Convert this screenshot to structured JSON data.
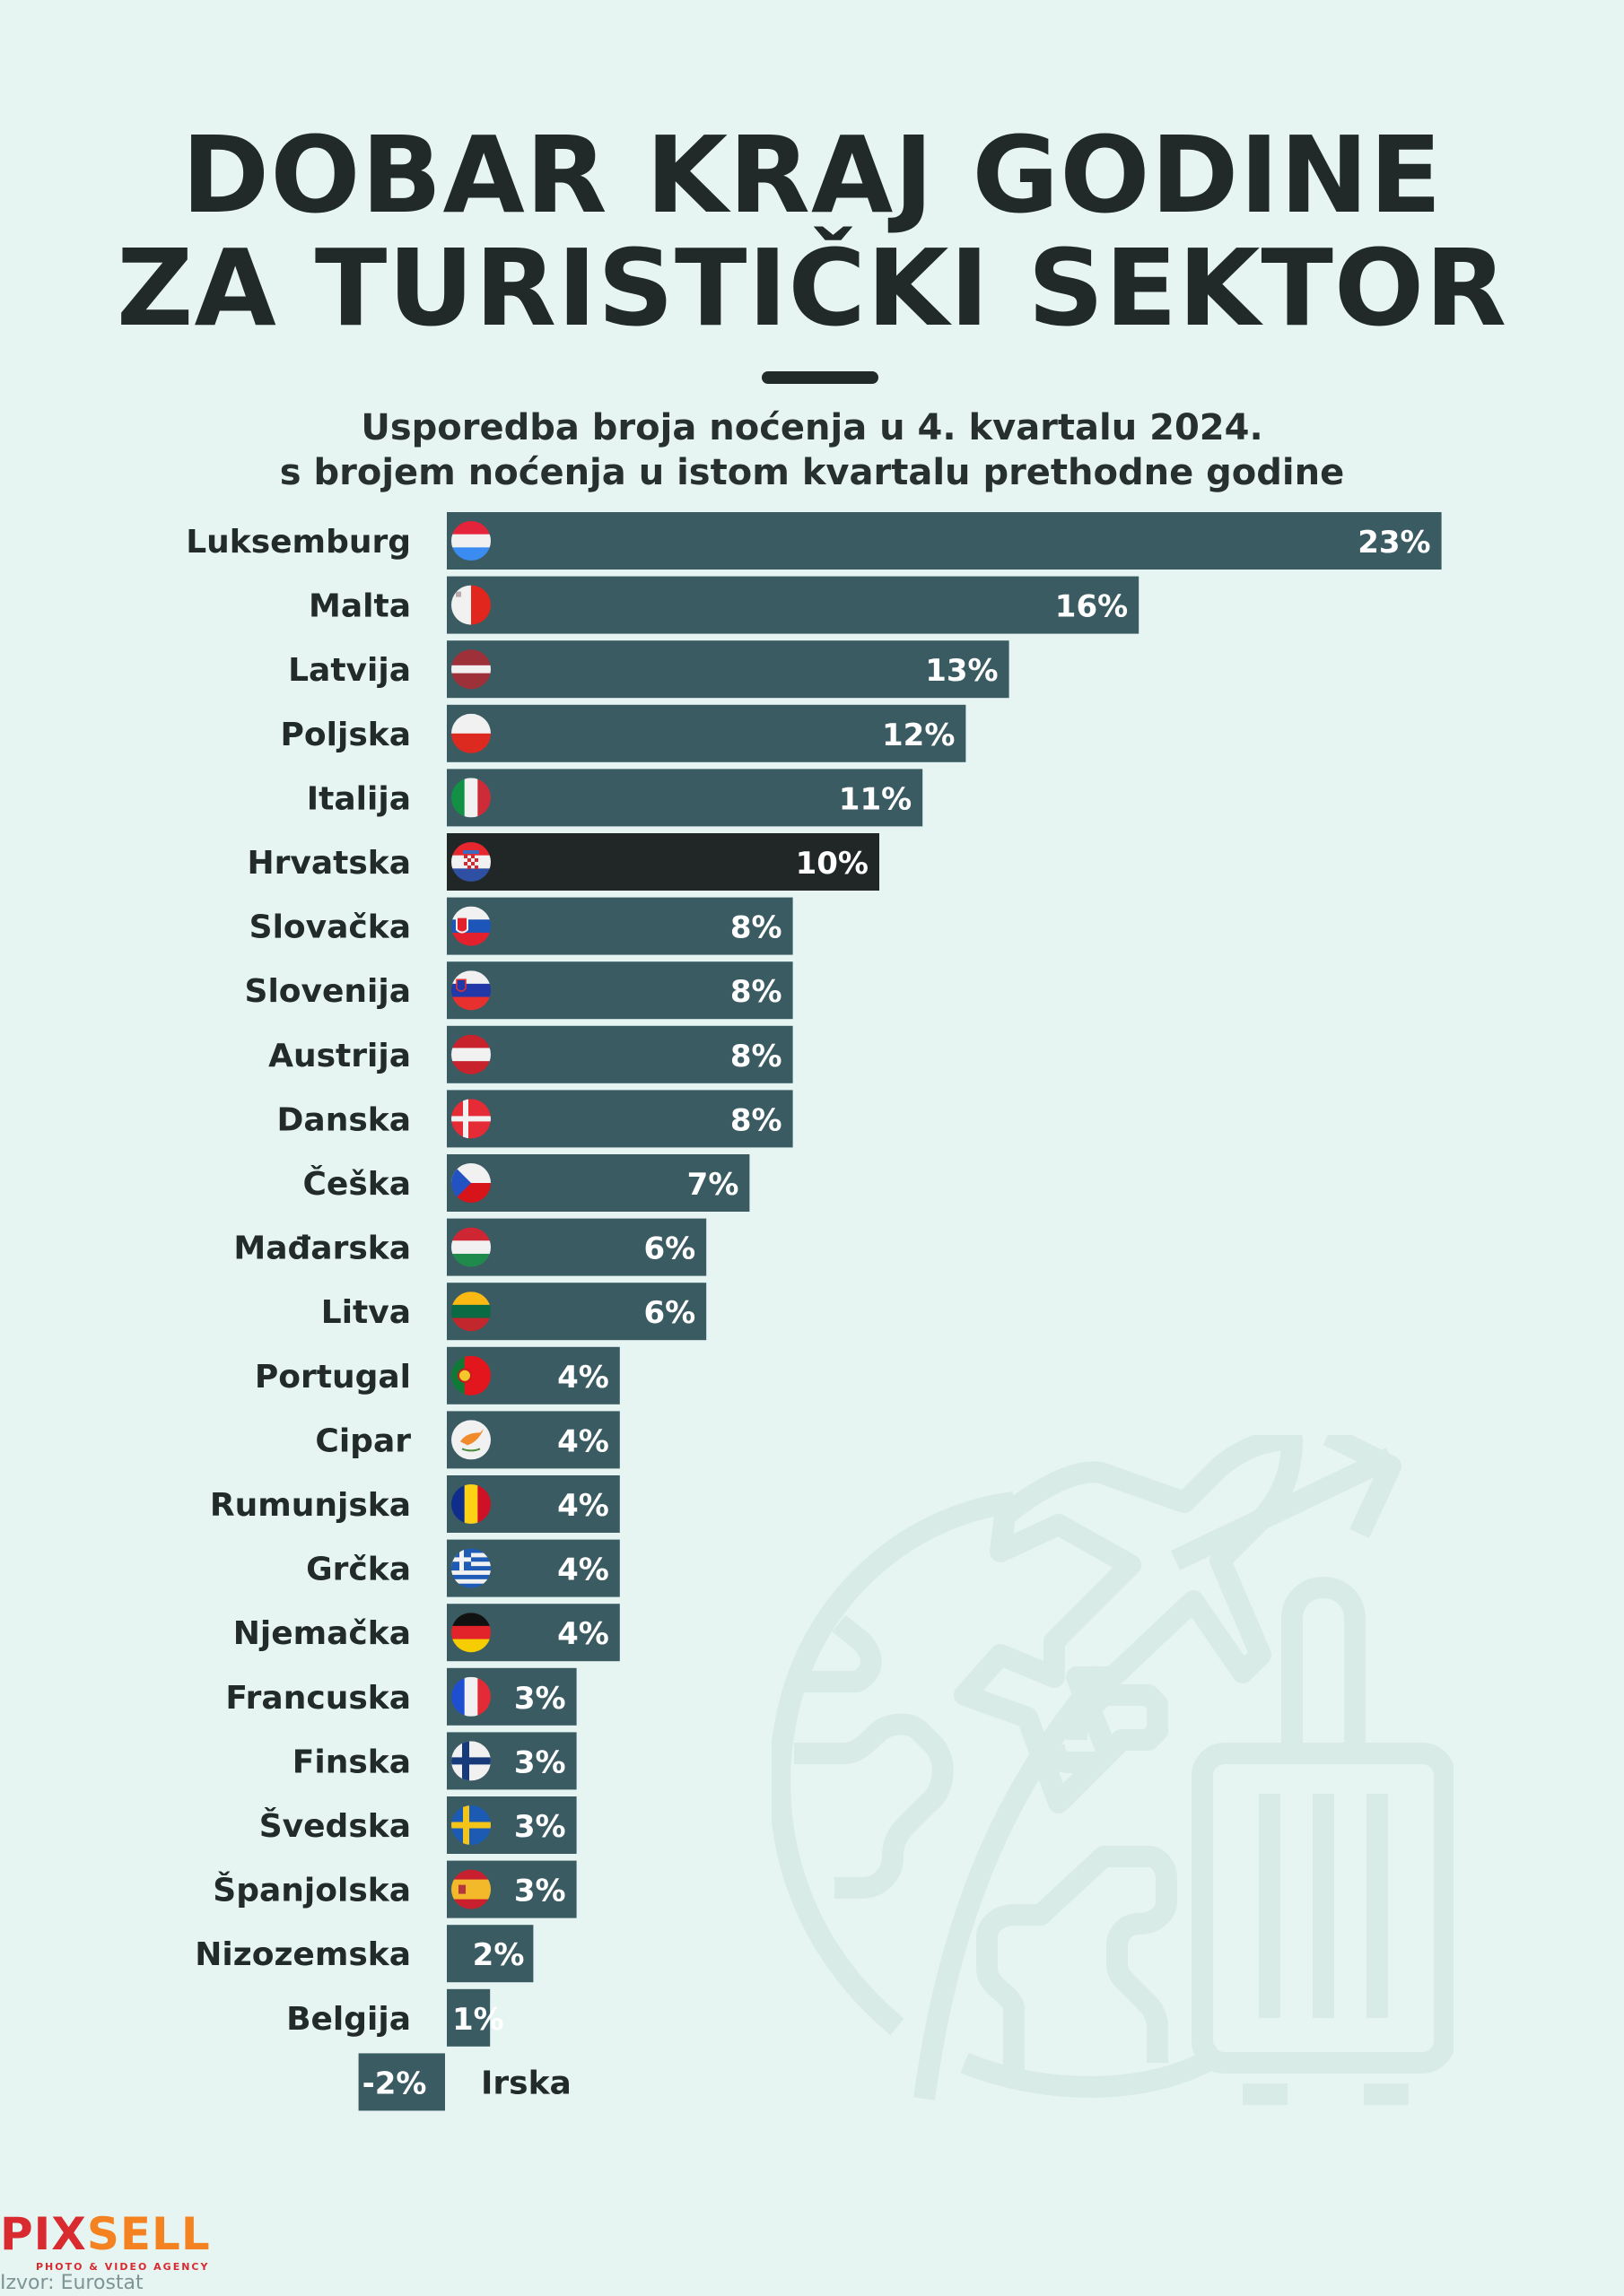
{
  "header": {
    "title_line1": "DOBAR KRAJ GODINE",
    "title_line2": "ZA TURISTIČKI SEKTOR",
    "subtitle_line1": "Usporedba broja noćenja u 4. kvartalu 2024.",
    "subtitle_line2": "s brojem noćenja u istom kvartalu prethodne godine"
  },
  "footer": {
    "logo_part1": "PIX",
    "logo_part2": "SELL",
    "logo_tagline": "PHOTO & VIDEO AGENCY",
    "source": "Izvor: Eurostat"
  },
  "colors": {
    "background": "#e6f5f2",
    "bar": "#3b5b63",
    "highlight_bar": "#212727",
    "label_text": "#222a2a",
    "value_text": "#ffffff"
  },
  "chart_data": {
    "type": "bar",
    "orientation": "horizontal",
    "title": "DOBAR KRAJ GODINE ZA TURISTIČKI SEKTOR",
    "subtitle": "Usporedba broja noćenja u 4. kvartalu 2024. s brojem noćenja u istom kvartalu prethodne godine",
    "xlabel": "",
    "ylabel": "",
    "unit": "%",
    "grid": false,
    "legend": "none",
    "highlight": "Hrvatska",
    "categories": [
      "Luksemburg",
      "Malta",
      "Latvija",
      "Poljska",
      "Italija",
      "Hrvatska",
      "Slovačka",
      "Slovenija",
      "Austrija",
      "Danska",
      "Češka",
      "Mađarska",
      "Litva",
      "Portugal",
      "Cipar",
      "Rumunjska",
      "Grčka",
      "Njemačka",
      "Francuska",
      "Finska",
      "Švedska",
      "Španjolska",
      "Nizozemska",
      "Belgija",
      "Irska"
    ],
    "values": [
      23,
      16,
      13,
      12,
      11,
      10,
      8,
      8,
      8,
      8,
      7,
      6,
      6,
      4,
      4,
      4,
      4,
      4,
      3,
      3,
      3,
      3,
      2,
      1,
      -2
    ],
    "value_labels": [
      "23%",
      "16%",
      "13%",
      "12%",
      "11%",
      "10%",
      "8%",
      "8%",
      "8%",
      "8%",
      "7%",
      "6%",
      "6%",
      "4%",
      "4%",
      "4%",
      "4%",
      "4%",
      "3%",
      "3%",
      "3%",
      "3%",
      "2%",
      "1%",
      "-2%"
    ],
    "flags": [
      "lu",
      "mt",
      "lv",
      "pl",
      "it",
      "hr",
      "sk",
      "si",
      "at",
      "dk",
      "cz",
      "hu",
      "lt",
      "pt",
      "cy",
      "ro",
      "gr",
      "de",
      "fr",
      "fi",
      "se",
      "es",
      "",
      "",
      ""
    ],
    "xlim": [
      -2,
      23
    ]
  }
}
